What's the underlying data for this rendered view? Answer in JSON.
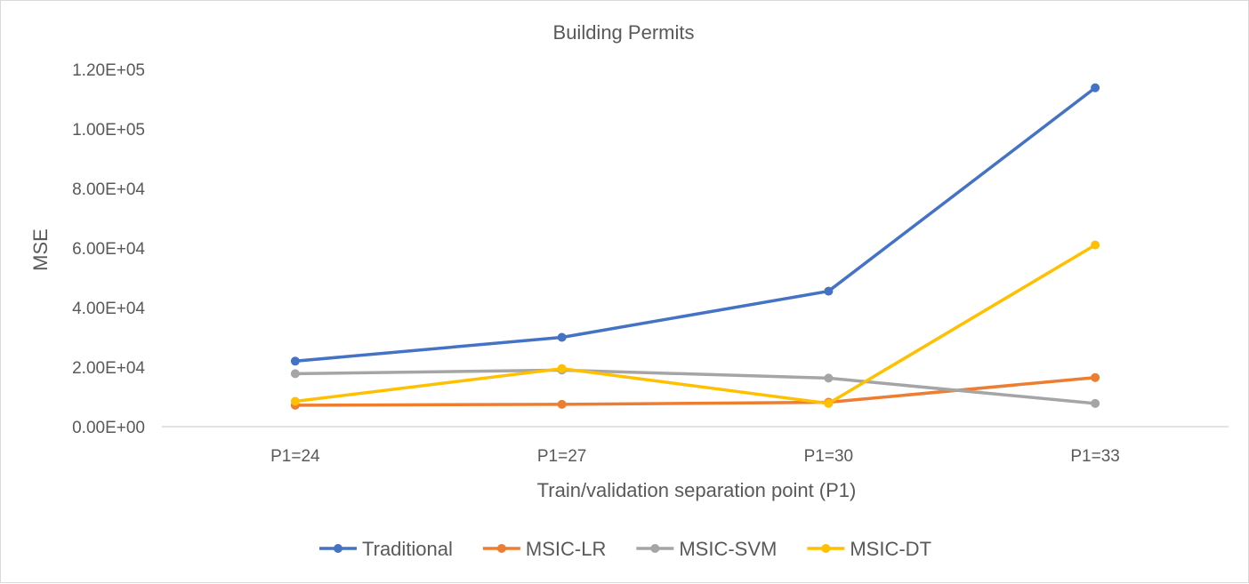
{
  "chart_data": {
    "type": "line",
    "title": "Building Permits",
    "xlabel": "Train/validation separation point (P1)",
    "ylabel": "MSE",
    "categories": [
      "P1=24",
      "P1=27",
      "P1=30",
      "P1=33"
    ],
    "ylim": [
      0,
      120000
    ],
    "yticks": [
      0,
      20000,
      40000,
      60000,
      80000,
      100000,
      120000
    ],
    "ytick_labels": [
      "0.00E+00",
      "2.00E+04",
      "4.00E+04",
      "6.00E+04",
      "8.00E+04",
      "1.00E+05",
      "1.20E+05"
    ],
    "grid": false,
    "legend_position": "bottom",
    "series": [
      {
        "name": "Traditional",
        "color": "#4472c4",
        "values": [
          22000,
          30000,
          45500,
          113800
        ]
      },
      {
        "name": "MSIC-LR",
        "color": "#ed7d31",
        "values": [
          7200,
          7500,
          8200,
          16500
        ]
      },
      {
        "name": "MSIC-SVM",
        "color": "#a5a5a5",
        "values": [
          17800,
          19000,
          16300,
          7800
        ]
      },
      {
        "name": "MSIC-DT",
        "color": "#ffc000",
        "values": [
          8500,
          19500,
          7800,
          61000
        ]
      }
    ]
  }
}
